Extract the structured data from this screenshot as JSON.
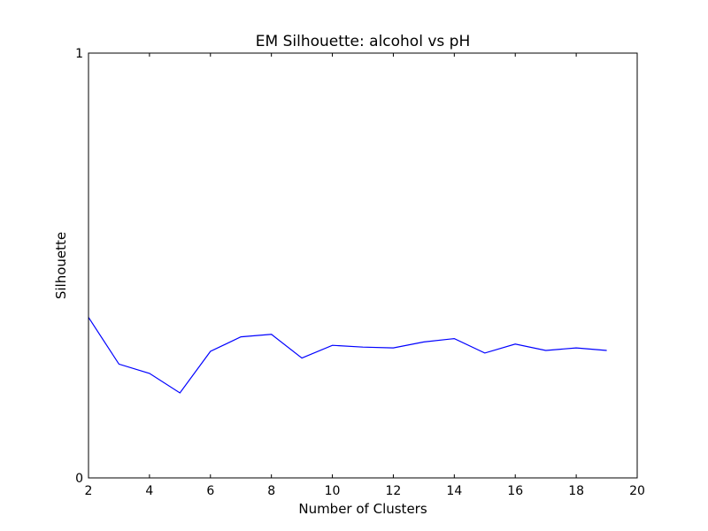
{
  "chart_data": {
    "type": "line",
    "title": "EM Silhouette: alcohol vs pH",
    "xlabel": "Number of Clusters",
    "ylabel": "Silhouette",
    "xlim": [
      2,
      20
    ],
    "ylim": [
      0,
      1
    ],
    "xticks": [
      2,
      4,
      6,
      8,
      10,
      12,
      14,
      16,
      18,
      20
    ],
    "xtick_labels": [
      "2",
      "4",
      "6",
      "8",
      "10",
      "12",
      "14",
      "16",
      "18",
      "20"
    ],
    "yticks": [
      0,
      1
    ],
    "ytick_labels": [
      "0",
      "1"
    ],
    "grid": false,
    "series": [
      {
        "color": "#0000ff",
        "x": [
          2,
          3,
          4,
          5,
          6,
          7,
          8,
          9,
          10,
          11,
          12,
          13,
          14,
          15,
          16,
          17,
          18,
          19
        ],
        "y": [
          0.378,
          0.268,
          0.246,
          0.2,
          0.298,
          0.332,
          0.338,
          0.282,
          0.312,
          0.308,
          0.306,
          0.32,
          0.328,
          0.294,
          0.315,
          0.3,
          0.306,
          0.3
        ]
      }
    ]
  }
}
